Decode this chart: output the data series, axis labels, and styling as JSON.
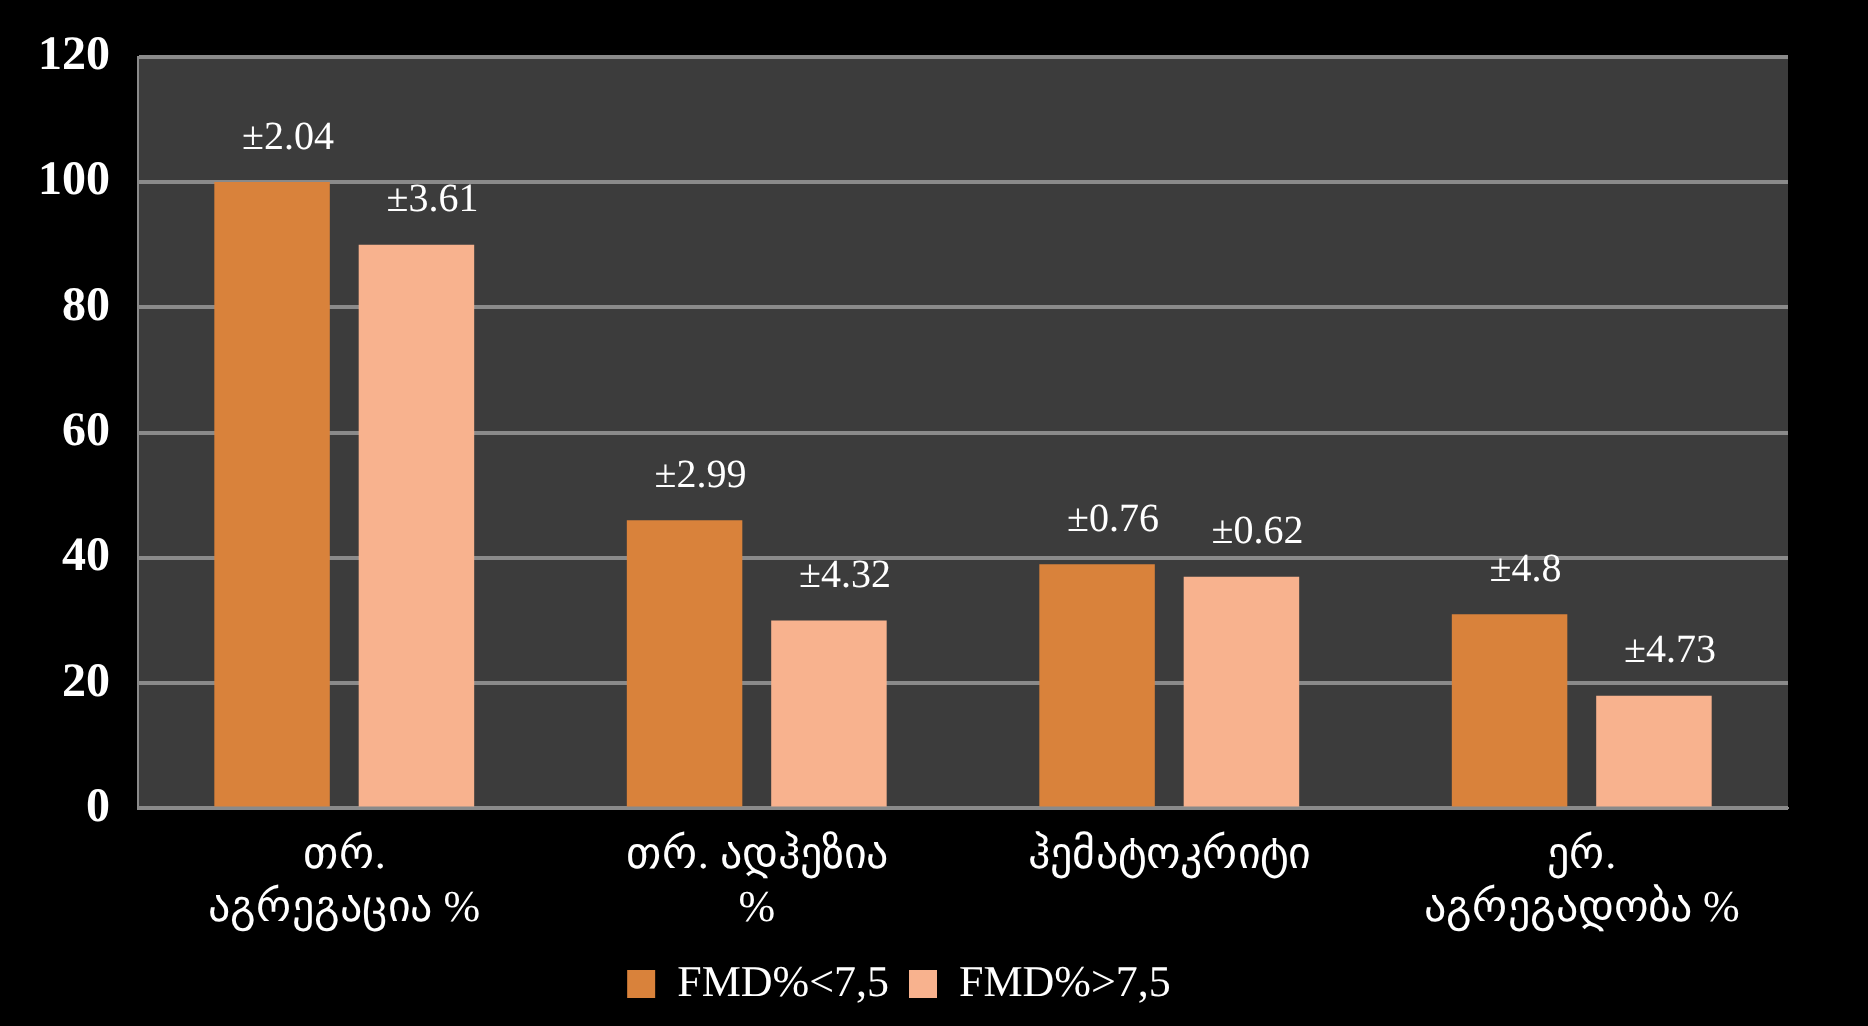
{
  "chart_data": {
    "type": "bar",
    "categories": [
      "თრ. აგრეგაცია %",
      "თრ. ადჰეზია %",
      "ჰემატოკრიტი",
      "ერ. აგრეგადობა %"
    ],
    "series": [
      {
        "name": "FMD%<7,5",
        "color": "#d9823b",
        "values": [
          100,
          46,
          39,
          31
        ]
      },
      {
        "name": "FMD%>7,5",
        "color": "#f8b28e",
        "values": [
          90,
          30,
          37,
          18
        ]
      }
    ],
    "annotations": [
      "±2.04",
      "±3.61",
      "±2.99",
      "±4.32",
      "±0.76",
      "±0.62",
      "±4.8",
      "±4.73"
    ],
    "ylim": [
      0,
      120
    ],
    "yticks": [
      0,
      20,
      40,
      60,
      80,
      100,
      120
    ],
    "grid": "y",
    "legend": "bottom"
  }
}
